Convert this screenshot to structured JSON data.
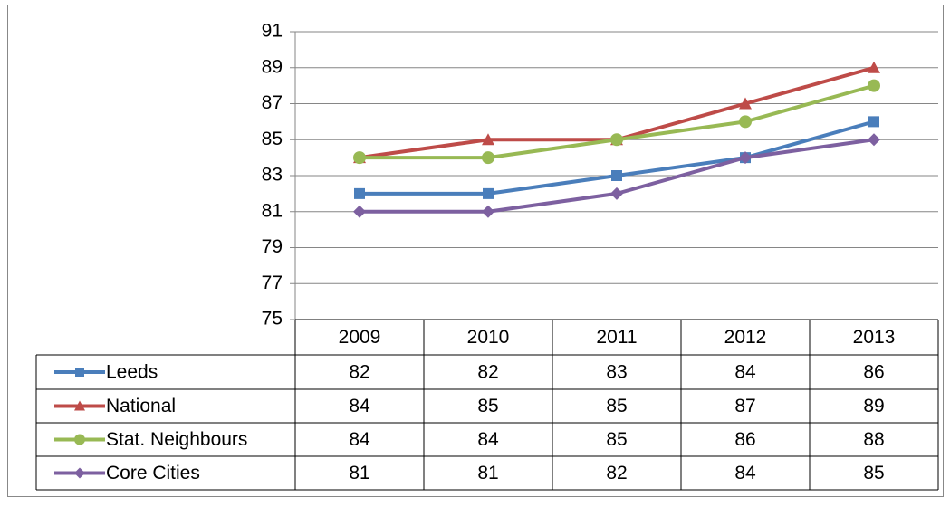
{
  "chart_data": {
    "type": "line",
    "categories": [
      "2009",
      "2010",
      "2011",
      "2012",
      "2013"
    ],
    "series": [
      {
        "name": "Leeds",
        "color": "#4a7ebb",
        "marker": "square",
        "values": [
          82,
          82,
          83,
          84,
          86
        ]
      },
      {
        "name": "National",
        "color": "#be4b48",
        "marker": "triangle",
        "values": [
          84,
          85,
          85,
          87,
          89
        ]
      },
      {
        "name": "Stat. Neighbours",
        "color": "#98b954",
        "marker": "circle",
        "values": [
          84,
          84,
          85,
          86,
          88
        ]
      },
      {
        "name": "Core Cities",
        "color": "#7d60a0",
        "marker": "diamond",
        "values": [
          81,
          81,
          82,
          84,
          85
        ]
      }
    ],
    "ylim": [
      75,
      91
    ],
    "yticks": [
      75,
      77,
      79,
      81,
      83,
      85,
      87,
      89,
      91
    ],
    "grid": true
  }
}
